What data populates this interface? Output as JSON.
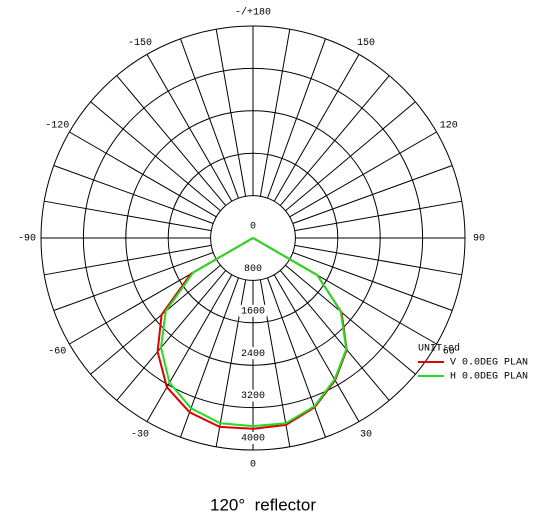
{
  "chart_data": {
    "type": "polar",
    "theta": [
      -90,
      -80,
      -70,
      -60,
      -50,
      -40,
      -30,
      -20,
      -10,
      0,
      10,
      20,
      30,
      40,
      50,
      60,
      70,
      80,
      90
    ],
    "series": [
      {
        "name": "V 0.0DEG PLAN",
        "color": "#e00000",
        "values": [
          0,
          0,
          0,
          1350,
          2250,
          2800,
          3250,
          3500,
          3620,
          3600,
          3580,
          3400,
          3100,
          2750,
          2180,
          1400,
          0,
          0,
          0
        ]
      },
      {
        "name": "H 0.0DEG PLAN",
        "color": "#22dd22",
        "values": [
          0,
          0,
          0,
          1300,
          2150,
          2700,
          3150,
          3420,
          3550,
          3550,
          3550,
          3380,
          3080,
          2740,
          2160,
          1400,
          0,
          0,
          0
        ]
      }
    ],
    "rlim": [
      0,
      4000
    ],
    "rticks": [
      0,
      800,
      1600,
      2400,
      3200,
      4000
    ],
    "thetaticks": [
      -150,
      -120,
      -90,
      -60,
      -30,
      0,
      30,
      60,
      90,
      120,
      150,
      {
        "value": 180,
        "label": "-/+180"
      }
    ],
    "spoke_step": 10,
    "unit_label": "UNIT:cd"
  },
  "caption": "120°  reflector"
}
